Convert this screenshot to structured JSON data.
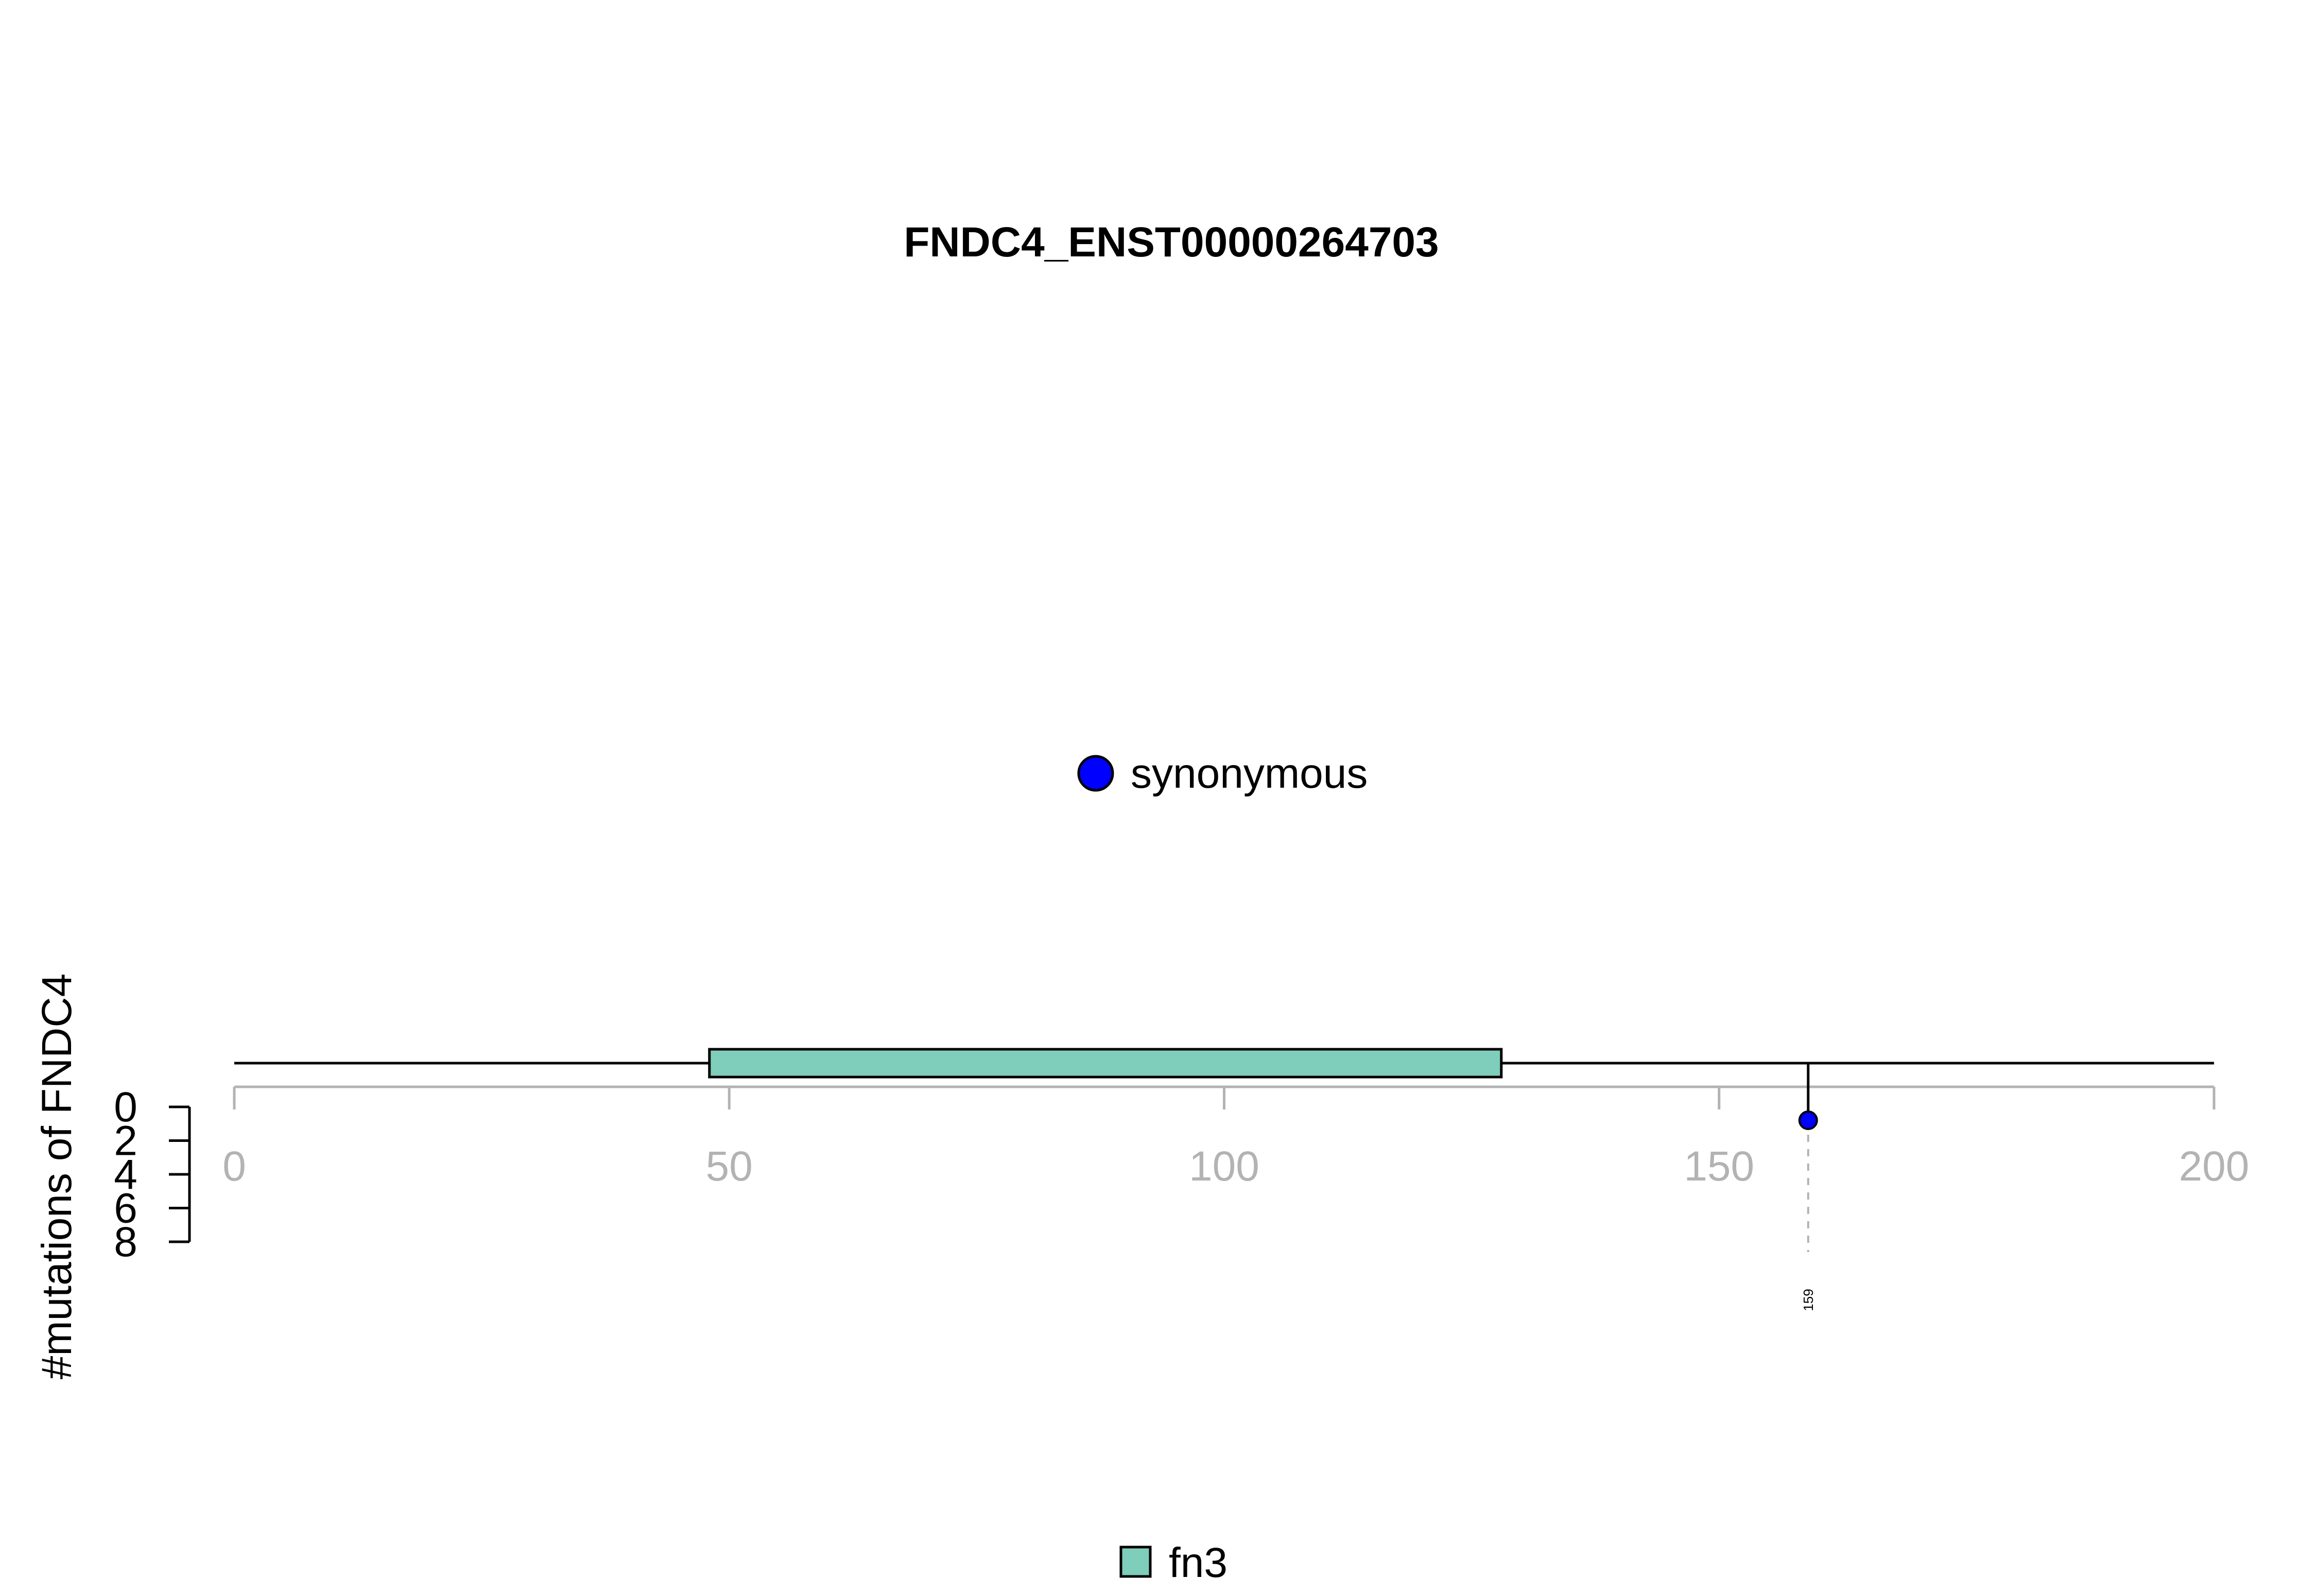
{
  "chart_data": {
    "type": "lollipop",
    "title": "FNDC4_ENST00000264703",
    "ylabel": "#mutations of FNDC4",
    "xlim": [
      0,
      200
    ],
    "x_ticks": [
      "0",
      "50",
      "100",
      "150",
      "200"
    ],
    "ylim": [
      0,
      8
    ],
    "y_ticks": [
      "0",
      "2",
      "4",
      "6",
      "8"
    ],
    "protein_length": 200,
    "domains": [
      {
        "name": "fn3",
        "start": 48,
        "end": 128,
        "color": "#7fcdbb"
      }
    ],
    "mutations": [
      {
        "position": 159,
        "label": "159",
        "count": 1,
        "type": "synonymous",
        "color": "#0000ff"
      }
    ],
    "mutation_legend": [
      {
        "label": "synonymous",
        "color": "#0000ff"
      }
    ],
    "domain_legend": [
      {
        "label": "fn3",
        "color": "#7fcdbb"
      }
    ]
  }
}
